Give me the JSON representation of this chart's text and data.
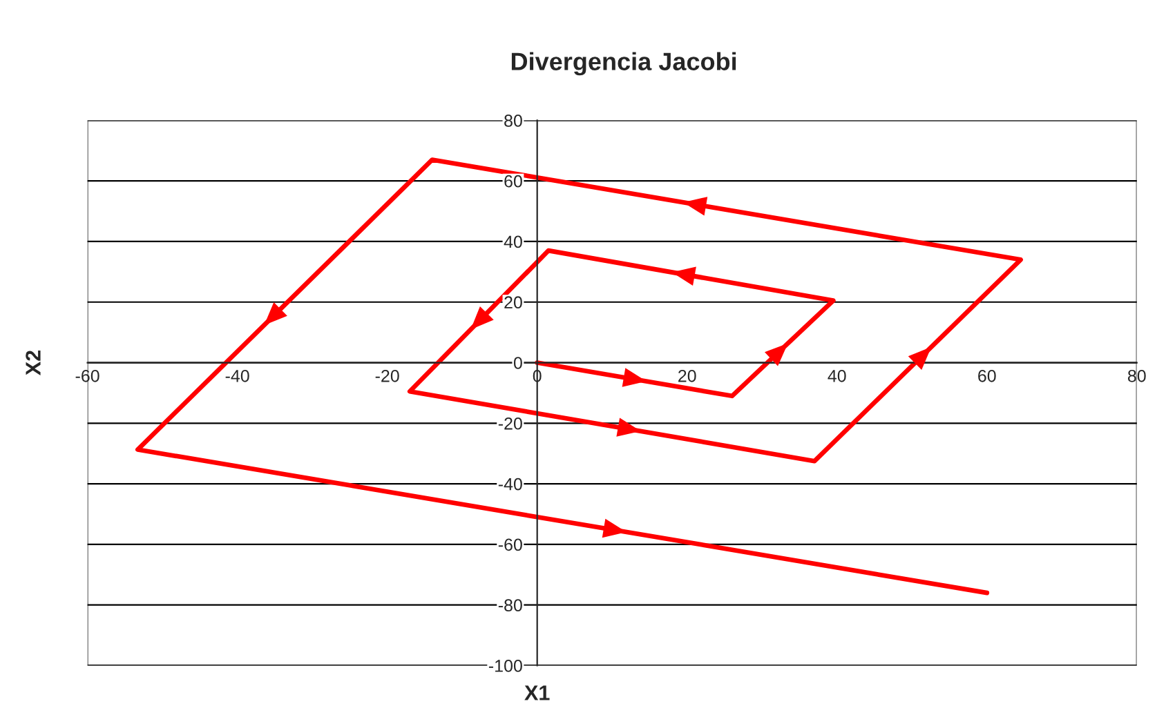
{
  "chart_data": {
    "type": "line",
    "title": "Divergencia Jacobi",
    "xlabel": "X1",
    "ylabel": "X2",
    "series": [
      {
        "color": "#ff0000",
        "x": [
          0,
          26,
          39.5,
          1.5,
          -17,
          37,
          64.5,
          -14,
          -53.3,
          60
        ],
        "values": [
          0,
          -11,
          20.5,
          37,
          -9.5,
          -32.5,
          34,
          67,
          -28.7,
          -76
        ]
      }
    ],
    "xlim": [
      -60,
      80
    ],
    "xticks": [
      -60,
      -40,
      -20,
      0,
      20,
      40,
      60,
      80
    ],
    "ylim": [
      -100,
      80
    ],
    "yticks": [
      -100,
      -80,
      -60,
      -40,
      -20,
      0,
      20,
      40,
      60,
      80
    ],
    "grid": "y",
    "marker": "none",
    "line_style": "solid"
  }
}
